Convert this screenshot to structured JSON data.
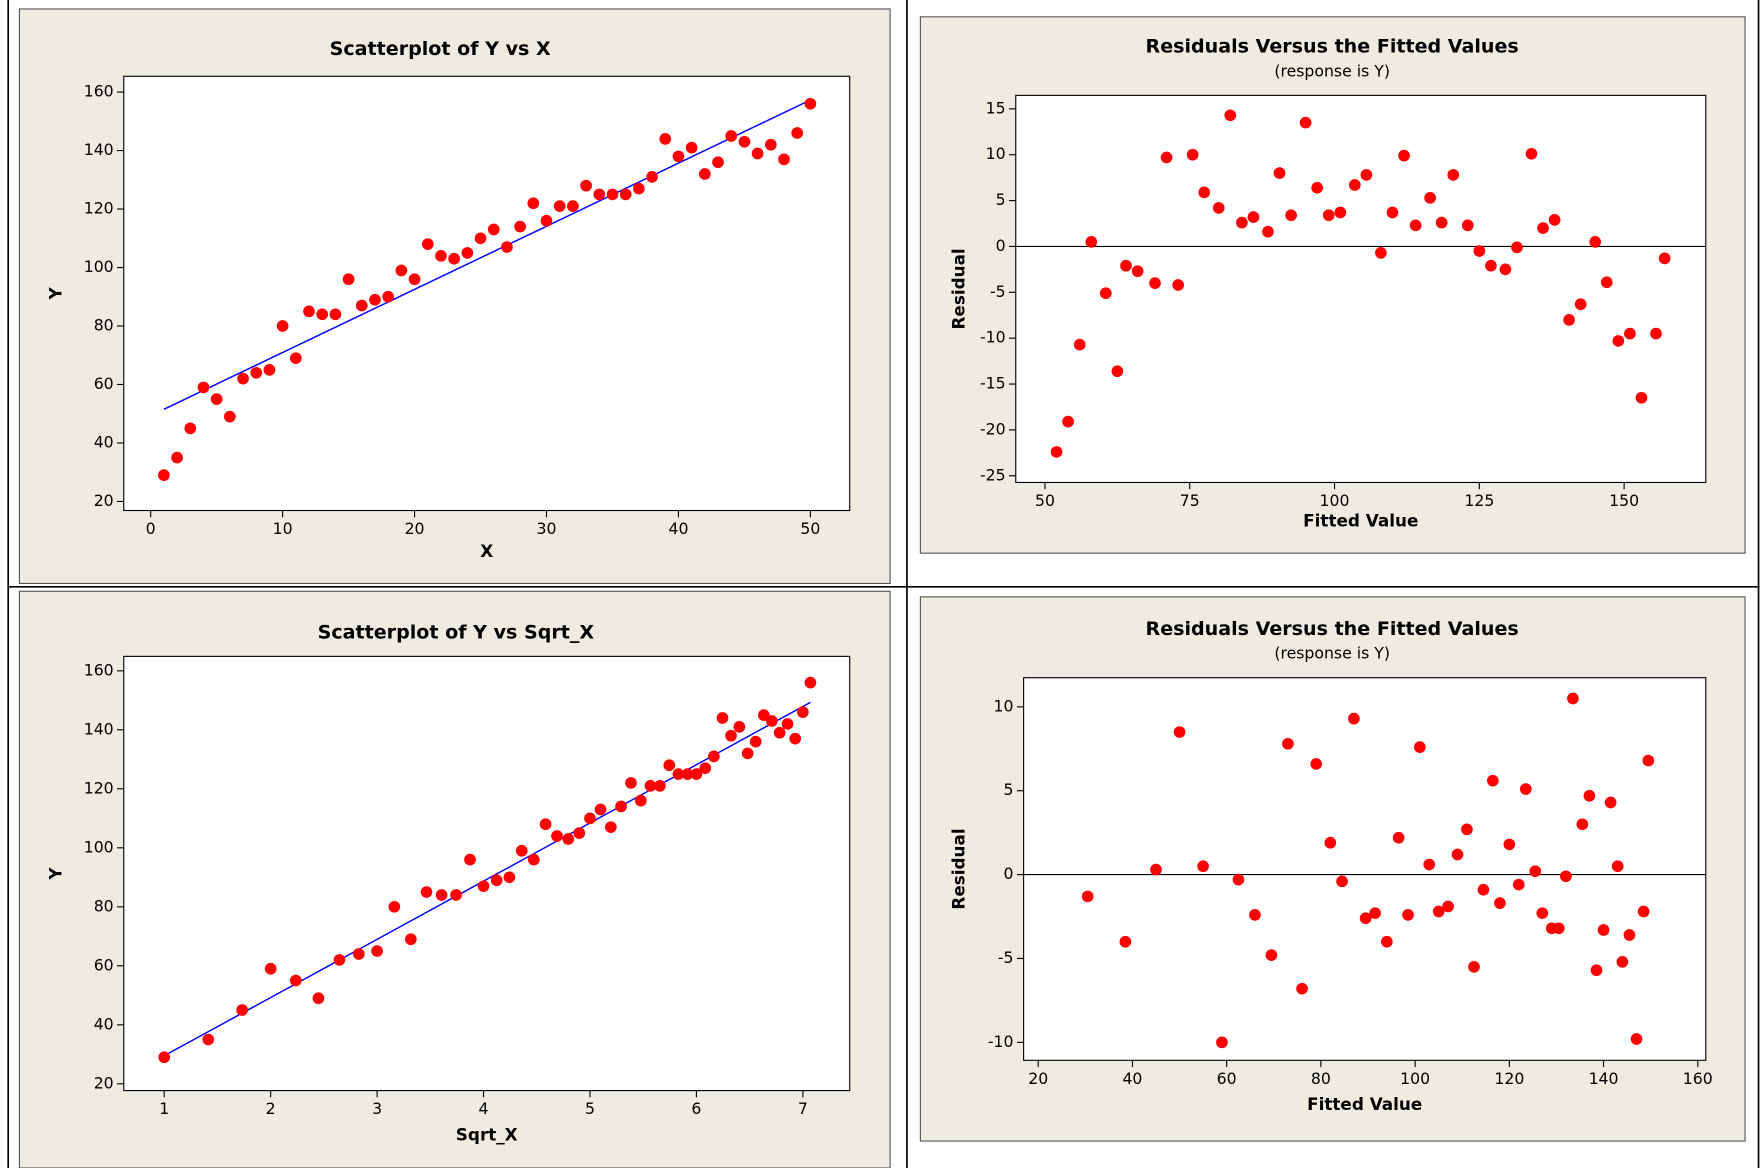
{
  "chart_data": [
    {
      "type": "scatter",
      "title": "Scatterplot of Y vs X",
      "x_label": "X",
      "y_label": "Y",
      "x": [
        1,
        2,
        3,
        4,
        5,
        6,
        7,
        8,
        9,
        10,
        11,
        12,
        13,
        14,
        15,
        16,
        17,
        18,
        19,
        20,
        21,
        22,
        23,
        24,
        25,
        26,
        27,
        28,
        29,
        30,
        31,
        32,
        33,
        34,
        35,
        36,
        37,
        38,
        39,
        40,
        41,
        42,
        43,
        44,
        45,
        46,
        47,
        48,
        49,
        50
      ],
      "series": [
        {
          "color": "#ff0000",
          "values": [
            29,
            35,
            45,
            59,
            55,
            49,
            62,
            64,
            65,
            80,
            69,
            85,
            84,
            84,
            96,
            87,
            89,
            90,
            99,
            96,
            108,
            104,
            103,
            105,
            110,
            113,
            107,
            114,
            122,
            116,
            121,
            121,
            128,
            125,
            125,
            125,
            127,
            131,
            144,
            138,
            141,
            132,
            136,
            145,
            143,
            139,
            142,
            137,
            146,
            156
          ]
        }
      ],
      "fit_line": {
        "color": "#0000ff",
        "x": [
          1,
          50
        ],
        "y": [
          51.5,
          157.3
        ]
      },
      "xlim": [
        -2.04,
        52.98
      ],
      "ylim": [
        16.9,
        165.4
      ],
      "xticks": [
        0,
        10,
        20,
        30,
        40,
        50
      ],
      "yticks": [
        20,
        40,
        60,
        80,
        100,
        120,
        140,
        160
      ]
    },
    {
      "type": "scatter",
      "title": "Residuals Versus the Fitted Values",
      "subtitle": "(response is Y)",
      "x_label": "Fitted Value",
      "y_label": "Residual",
      "x": [
        52,
        54,
        56,
        58,
        60.5,
        62.5,
        64,
        66,
        69,
        71,
        73,
        75.5,
        77.5,
        80,
        82,
        84,
        86,
        88.5,
        90.5,
        92.5,
        95,
        97,
        99,
        101,
        103.5,
        105.5,
        108,
        110,
        112,
        114,
        116.5,
        118.5,
        120.5,
        123,
        125,
        127,
        129.5,
        131.5,
        134,
        136,
        138,
        140.5,
        142.5,
        145,
        147,
        149,
        151,
        153,
        155.5,
        157
      ],
      "series": [
        {
          "color": "#ff0000",
          "values": [
            -22.4,
            -19.1,
            -10.7,
            0.5,
            -5.1,
            -13.6,
            -2.1,
            -2.7,
            -4.0,
            9.7,
            -4.2,
            10.0,
            5.9,
            4.2,
            14.3,
            2.6,
            3.2,
            1.6,
            8.0,
            3.4,
            13.5,
            6.4,
            3.4,
            3.7,
            6.7,
            7.8,
            -0.7,
            3.7,
            9.9,
            2.3,
            5.3,
            2.6,
            7.8,
            2.3,
            -0.5,
            -2.1,
            -2.5,
            -0.1,
            10.1,
            2.0,
            2.9,
            -8.0,
            -6.3,
            0.5,
            -3.9,
            -10.3,
            -9.5,
            -16.5,
            -9.5,
            -1.3
          ]
        }
      ],
      "reference_line": 0,
      "xlim": [
        44.96,
        164.1
      ],
      "ylim": [
        -25.73,
        16.47
      ],
      "xticks": [
        50,
        75,
        100,
        125,
        150
      ],
      "yticks": [
        -25,
        -20,
        -15,
        -10,
        -5,
        0,
        5,
        10,
        15
      ]
    },
    {
      "type": "scatter",
      "title": "Scatterplot of Y vs Sqrt_X",
      "x_label": "Sqrt_X",
      "y_label": "Y",
      "x": [
        1,
        1.414,
        1.732,
        2,
        2.236,
        2.449,
        2.646,
        2.828,
        3,
        3.162,
        3.317,
        3.464,
        3.606,
        3.742,
        3.873,
        4,
        4.123,
        4.243,
        4.359,
        4.472,
        4.583,
        4.69,
        4.796,
        4.899,
        5,
        5.099,
        5.196,
        5.292,
        5.385,
        5.477,
        5.568,
        5.657,
        5.745,
        5.831,
        5.916,
        6,
        6.083,
        6.164,
        6.245,
        6.325,
        6.403,
        6.481,
        6.557,
        6.633,
        6.708,
        6.782,
        6.856,
        6.928,
        7,
        7.071
      ],
      "series": [
        {
          "color": "#ff0000",
          "values": [
            29,
            35,
            45,
            59,
            55,
            49,
            62,
            64,
            65,
            80,
            69,
            85,
            84,
            84,
            96,
            87,
            89,
            90,
            99,
            96,
            108,
            104,
            103,
            105,
            110,
            113,
            107,
            114,
            122,
            116,
            121,
            121,
            128,
            125,
            125,
            125,
            127,
            131,
            144,
            138,
            141,
            132,
            136,
            145,
            143,
            139,
            142,
            137,
            146,
            156
          ]
        }
      ],
      "fit_line": {
        "color": "#0000ff",
        "x": [
          1,
          7.071
        ],
        "y": [
          29.5,
          149.3
        ]
      },
      "xlim": [
        0.62,
        7.44
      ],
      "ylim": [
        17.7,
        164.9
      ],
      "xticks": [
        1,
        2,
        3,
        4,
        5,
        6,
        7
      ],
      "yticks": [
        20,
        40,
        60,
        80,
        100,
        120,
        140,
        160
      ]
    },
    {
      "type": "scatter",
      "title": "Residuals Versus the Fitted Values",
      "subtitle": "(response is Y)",
      "x_label": "Fitted Value",
      "y_label": "Residual",
      "x": [
        30.5,
        38.5,
        45,
        50,
        55,
        59,
        62.5,
        66,
        69.5,
        73,
        76,
        79,
        82,
        84.5,
        87,
        89.5,
        91.5,
        94,
        96.5,
        98.5,
        101,
        103,
        105,
        107,
        109,
        111,
        112.5,
        114.5,
        116.5,
        118,
        120,
        122,
        123.5,
        125.5,
        127,
        129,
        130.5,
        132,
        133.5,
        135.5,
        137,
        138.5,
        140,
        141.5,
        143,
        144,
        145.5,
        147,
        148.5,
        149.5
      ],
      "series": [
        {
          "color": "#ff0000",
          "values": [
            -1.3,
            -4.0,
            0.3,
            8.5,
            0.5,
            -10.0,
            -0.3,
            -2.4,
            -4.8,
            7.8,
            -6.8,
            6.6,
            1.9,
            -0.4,
            9.3,
            -2.6,
            -2.3,
            -4.0,
            2.2,
            -2.4,
            7.6,
            0.6,
            -2.2,
            -1.9,
            1.2,
            2.7,
            -5.5,
            -0.9,
            5.6,
            -1.7,
            1.8,
            -0.6,
            5.1,
            0.2,
            -2.3,
            -3.2,
            -3.2,
            -0.1,
            10.5,
            3.0,
            4.7,
            -5.7,
            -3.3,
            4.3,
            0.5,
            -5.2,
            -3.6,
            -9.8,
            -2.2,
            6.8
          ]
        }
      ],
      "reference_line": 0,
      "xlim": [
        16.9,
        161.7
      ],
      "ylim": [
        -11.07,
        11.74
      ],
      "xticks": [
        20,
        40,
        60,
        80,
        100,
        120,
        140,
        160
      ],
      "yticks": [
        -10,
        -5,
        0,
        5,
        10
      ]
    }
  ]
}
